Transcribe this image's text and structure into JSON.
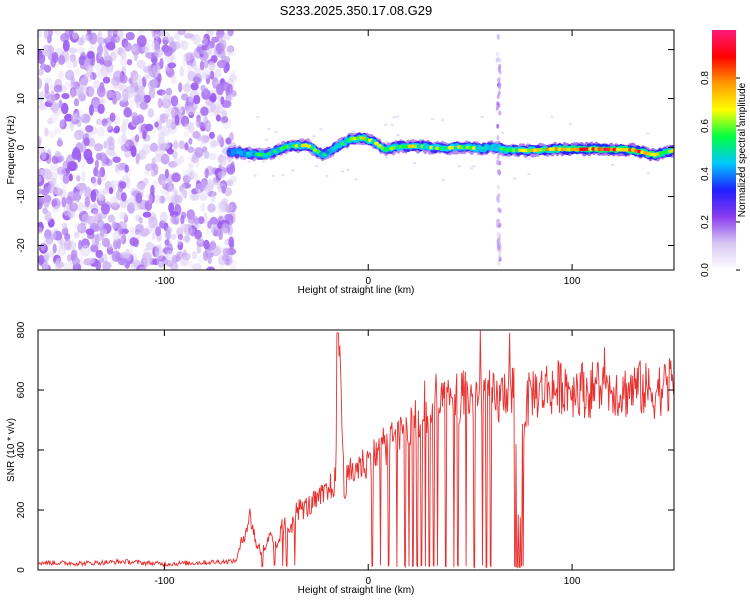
{
  "figure_title": "S233.2025.350.17.08.G29",
  "colors": {
    "snr_line": "#e8302f",
    "axis": "#000000",
    "background": "#ffffff"
  },
  "chart_data": [
    {
      "type": "heatmap",
      "title": "S233.2025.350.17.08.G29",
      "xlabel": "Height of straight line (km)",
      "ylabel": "Frequency (Hz)",
      "xlim": [
        -162,
        150
      ],
      "ylim": [
        -25,
        24
      ],
      "xticks": [
        -100,
        0,
        100
      ],
      "xtick_labels": [
        "-100",
        "0",
        "100"
      ],
      "yticks": [
        -20,
        -10,
        0,
        10,
        20
      ],
      "ytick_labels": [
        "-20",
        "-10",
        "0",
        "10",
        "20"
      ],
      "noise_region_x": [
        -162,
        -68
      ],
      "vertical_spike_x": 64,
      "ridge": {
        "x": [
          -68,
          -60,
          -50,
          -40,
          -30,
          -22,
          -15,
          -8,
          -3,
          3,
          8,
          15,
          25,
          35,
          45,
          55,
          62,
          68,
          80,
          90,
          100,
          110,
          120,
          130,
          140,
          150
        ],
        "y": [
          -0.8,
          -1.2,
          -1.5,
          0.2,
          0.5,
          -1.5,
          0.3,
          1.8,
          2.0,
          1.2,
          -0.5,
          0.2,
          0.3,
          -0.2,
          0.1,
          -0.2,
          0.1,
          -0.5,
          -0.6,
          -0.3,
          -0.4,
          -0.3,
          -0.4,
          -0.5,
          -1.5,
          -0.6
        ],
        "amplitude": [
          0.35,
          0.45,
          0.5,
          0.55,
          0.6,
          0.5,
          0.55,
          0.6,
          0.65,
          0.6,
          0.55,
          0.6,
          0.6,
          0.6,
          0.6,
          0.55,
          0.55,
          0.6,
          0.65,
          0.7,
          0.85,
          0.9,
          0.9,
          0.9,
          0.8,
          0.6
        ]
      },
      "colorbar": {
        "label": "Normalized spectral amplitude",
        "range": [
          0.0,
          1.0
        ],
        "ticks": [
          0.0,
          0.2,
          0.4,
          0.6,
          0.8
        ],
        "tick_labels": [
          "0.0",
          "0.2",
          "0.4",
          "0.6",
          "0.8"
        ],
        "stops": [
          "#ffffff",
          "#d8c6f2",
          "#8a3cf0",
          "#1f1fff",
          "#00c8ff",
          "#00ff40",
          "#ffff00",
          "#ff9900",
          "#ff0000",
          "#ff1a7a"
        ]
      }
    },
    {
      "type": "line",
      "title": "",
      "xlabel": "Height of straight line (km)",
      "ylabel": "SNR (10 * v/v)",
      "xlim": [
        -162,
        150
      ],
      "ylim": [
        0,
        800
      ],
      "xticks": [
        -100,
        0,
        100
      ],
      "xtick_labels": [
        "-100",
        "0",
        "100"
      ],
      "yticks": [
        0,
        200,
        400,
        600,
        800
      ],
      "ytick_labels": [
        "0",
        "200",
        "400",
        "600",
        "800"
      ],
      "series": [
        {
          "name": "SNR",
          "x": [
            -162,
            -140,
            -120,
            -100,
            -80,
            -65,
            -58,
            -55,
            -52,
            -48,
            -45,
            -42,
            -38,
            -35,
            -30,
            -25,
            -20,
            -16,
            -14,
            -12,
            -8,
            -4,
            0,
            4,
            8,
            12,
            16,
            20,
            24,
            28,
            32,
            36,
            40,
            44,
            48,
            52,
            56,
            60,
            64,
            68,
            72,
            74,
            76,
            80,
            84,
            88,
            92,
            96,
            100,
            104,
            108,
            112,
            116,
            120,
            124,
            128,
            132,
            136,
            140,
            144,
            148,
            150
          ],
          "y": [
            25,
            22,
            28,
            20,
            25,
            30,
            180,
            90,
            60,
            110,
            70,
            150,
            140,
            200,
            210,
            230,
            260,
            300,
            780,
            280,
            330,
            350,
            360,
            390,
            410,
            440,
            450,
            480,
            500,
            510,
            530,
            540,
            560,
            570,
            580,
            570,
            590,
            580,
            560,
            610,
            600,
            50,
            500,
            600,
            590,
            610,
            600,
            620,
            600,
            610,
            590,
            620,
            600,
            610,
            590,
            600,
            610,
            600,
            590,
            610,
            600,
            620
          ]
        }
      ],
      "dropouts_x": [
        -52,
        -46,
        -42,
        -40,
        -36,
        2,
        6,
        10,
        14,
        18,
        20,
        22,
        24,
        26,
        28,
        30,
        32,
        34,
        38,
        42,
        44,
        48,
        52,
        56,
        58,
        60,
        72,
        73,
        74,
        75,
        76
      ]
    }
  ]
}
